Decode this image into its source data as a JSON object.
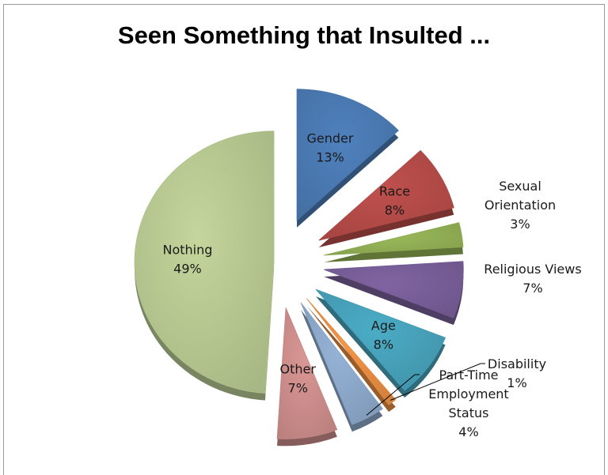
{
  "chart_data": {
    "type": "pie",
    "title": "Seen Something that Insulted ...",
    "exploded": true,
    "slices": [
      {
        "label": "Gender",
        "value": 13,
        "value_label": "13%",
        "color": "#4f81bd"
      },
      {
        "label": "Race",
        "value": 8,
        "value_label": "8%",
        "color": "#c0504d"
      },
      {
        "label": "Sexual Orientation",
        "value": 3,
        "value_label": "3%",
        "color": "#9bbb59"
      },
      {
        "label": "Religious Views",
        "value": 7,
        "value_label": "7%",
        "color": "#8064a2"
      },
      {
        "label": "Age",
        "value": 8,
        "value_label": "8%",
        "color": "#4bacc6"
      },
      {
        "label": "Disability",
        "value": 1,
        "value_label": "1%",
        "color": "#f79646"
      },
      {
        "label": "Part-Time Employment Status",
        "value": 4,
        "value_label": "4%",
        "color": "#95b3d7"
      },
      {
        "label": "Other",
        "value": 7,
        "value_label": "7%",
        "color": "#d99694"
      },
      {
        "label": "Nothing",
        "value": 49,
        "value_label": "49%",
        "color": "#c3d69b"
      }
    ]
  }
}
